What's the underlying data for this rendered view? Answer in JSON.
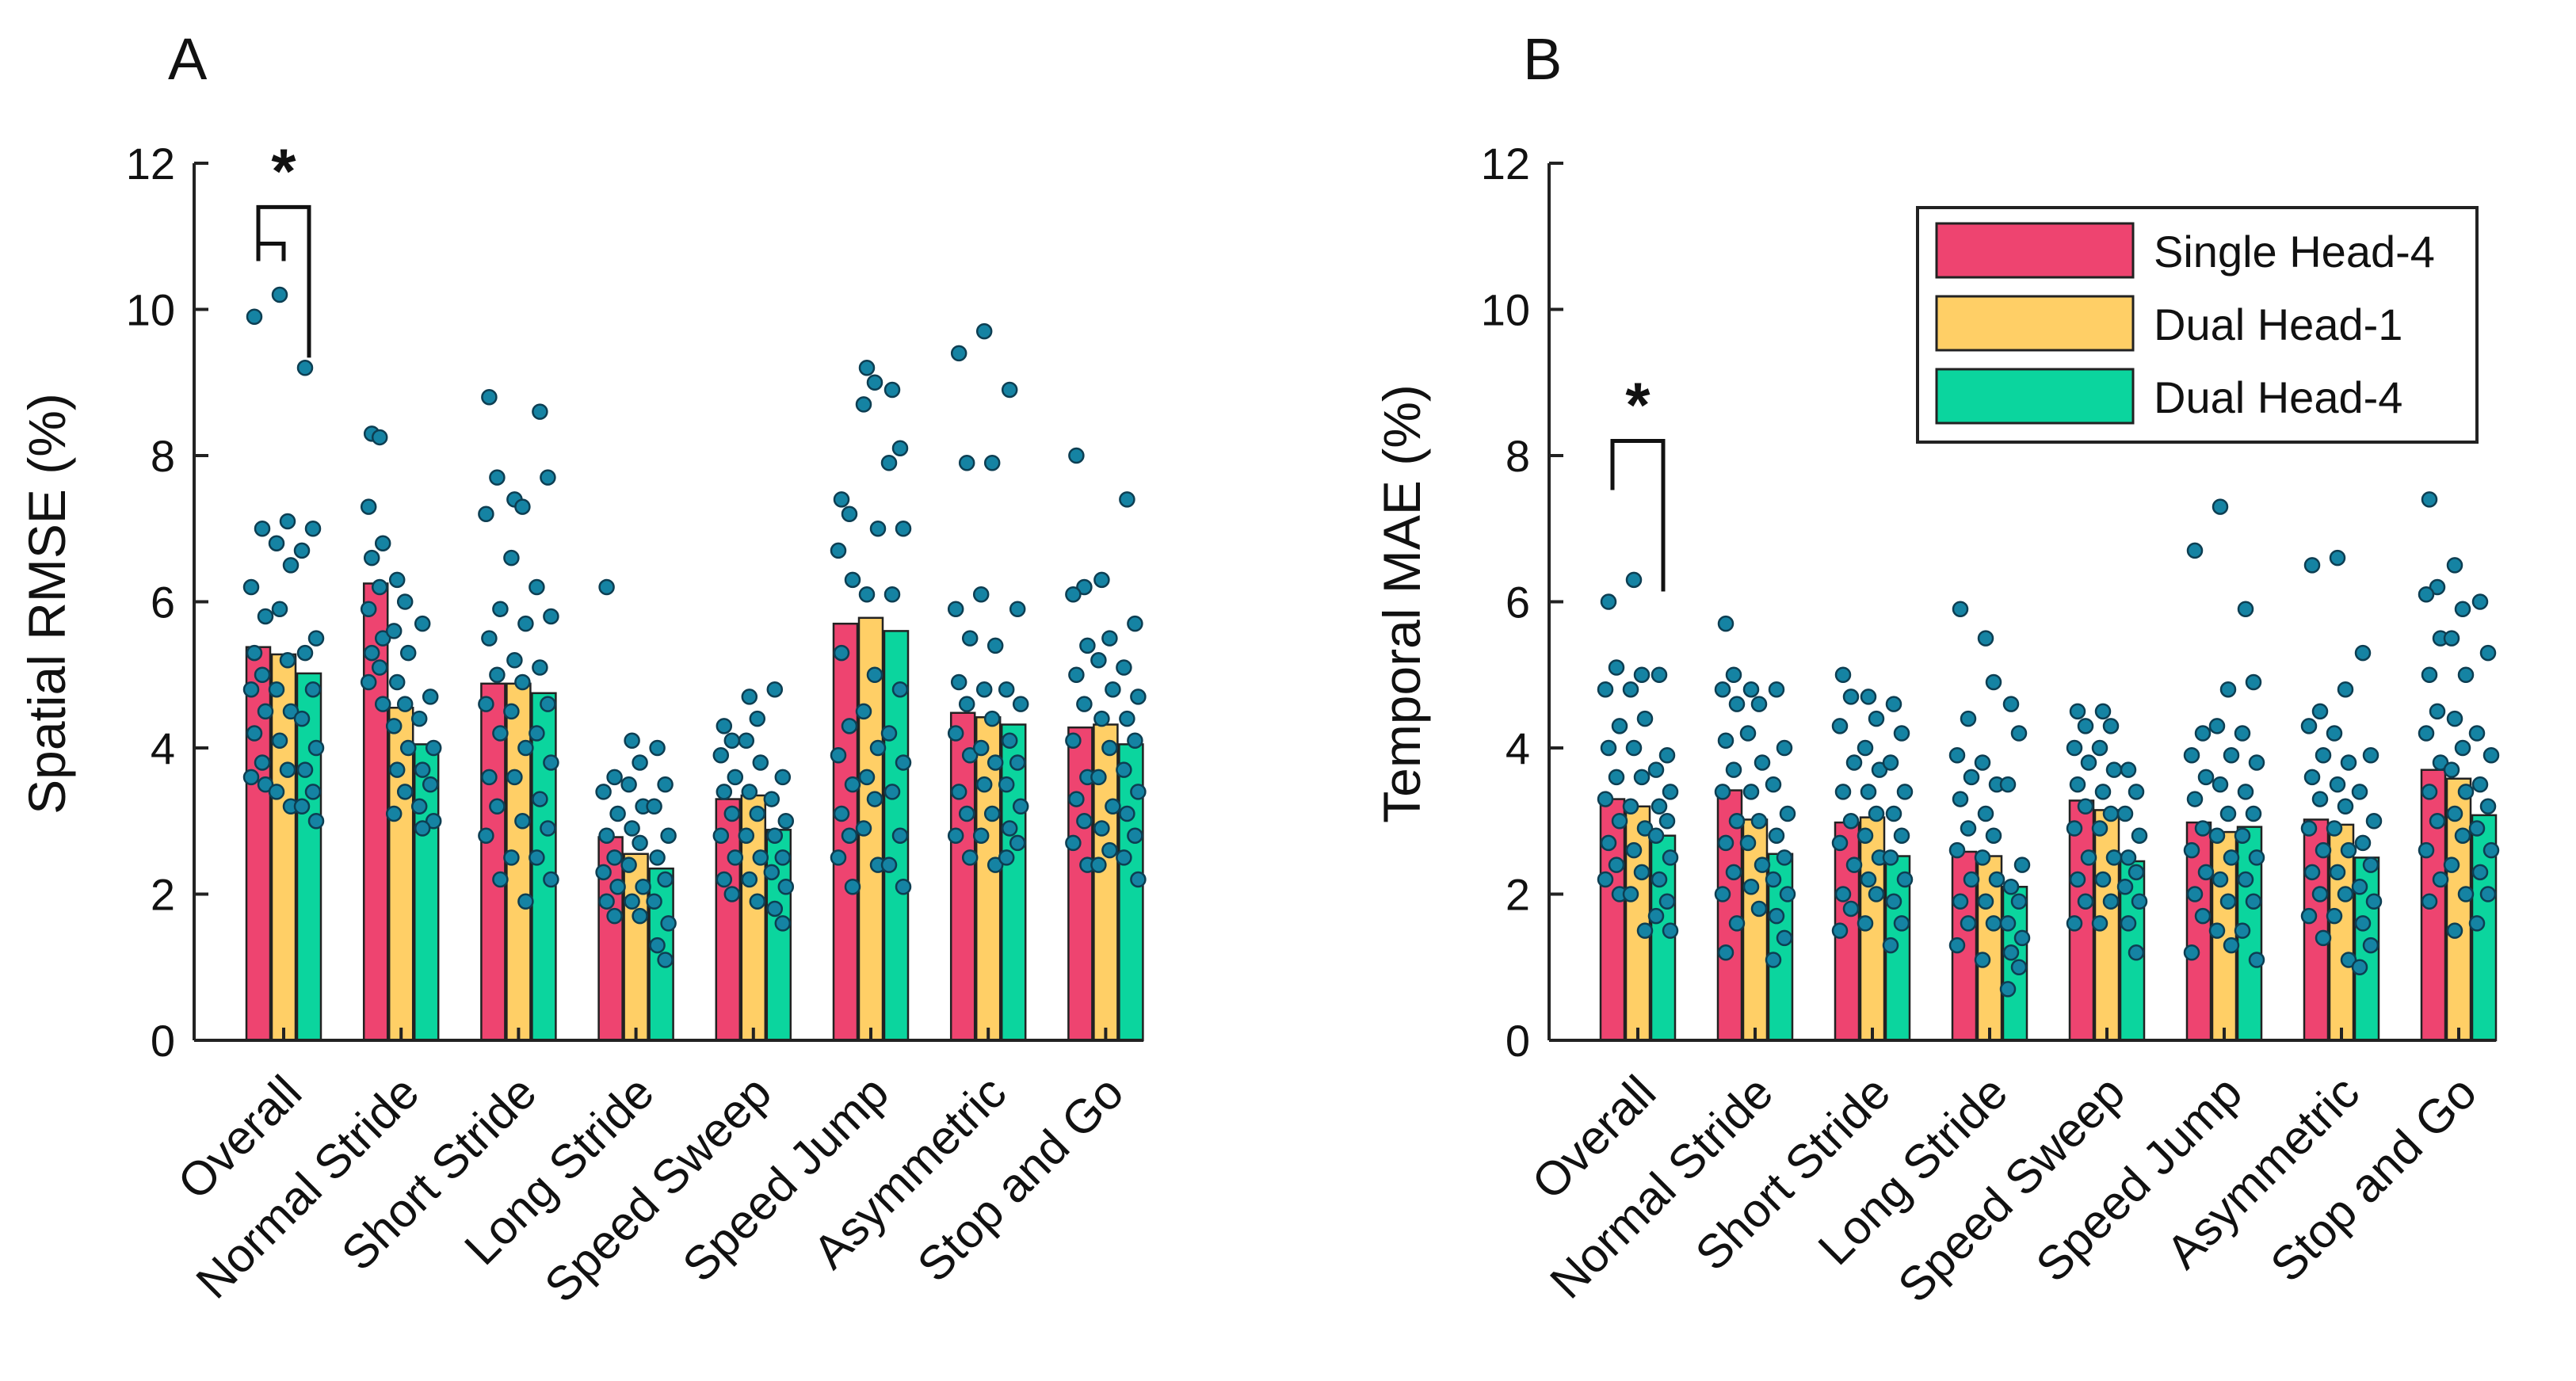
{
  "colors": {
    "single_head_4": "#EE4470",
    "dual_head_1": "#FFCF66",
    "dual_head_4": "#0BD59E",
    "dot": "#1583A3",
    "dot_edge": "#0D3E52"
  },
  "legend": [
    {
      "label": "Single Head-4",
      "color": "#EE4470"
    },
    {
      "label": "Dual Head-1",
      "color": "#FFCF66"
    },
    {
      "label": "Dual Head-4",
      "color": "#0BD59E"
    }
  ],
  "chart_data": [
    {
      "type": "bar",
      "panel": "A",
      "ylabel": "Spatial RMSE (%)",
      "xlabel": "",
      "ylim": [
        0,
        12
      ],
      "yticks": [
        0,
        2,
        4,
        6,
        8,
        10,
        12
      ],
      "categories": [
        "Overall",
        "Normal Stride",
        "Short Stride",
        "Long Stride",
        "Speed Sweep",
        "Speed Jump",
        "Asymmetric",
        "Stop and Go"
      ],
      "series": [
        {
          "name": "Single Head-4",
          "values": [
            5.38,
            6.25,
            4.88,
            2.78,
            3.3,
            5.7,
            4.48,
            4.28
          ],
          "points": [
            [
              9.9,
              7.0,
              6.2,
              5.8,
              5.3,
              5.0,
              4.8,
              4.5,
              4.2,
              3.8,
              3.6,
              3.5
            ],
            [
              8.3,
              8.25,
              7.3,
              6.8,
              6.6,
              6.2,
              5.9,
              5.5,
              5.3,
              5.1,
              4.9,
              4.6
            ],
            [
              8.8,
              7.7,
              7.2,
              5.9,
              5.5,
              5.0,
              4.6,
              4.2,
              3.6,
              3.2,
              2.8,
              2.2
            ],
            [
              6.2,
              3.6,
              3.4,
              3.1,
              2.8,
              2.5,
              2.3,
              2.1,
              1.9,
              1.7
            ],
            [
              4.3,
              4.1,
              3.9,
              3.6,
              3.4,
              3.1,
              2.8,
              2.5,
              2.2,
              2.0
            ],
            [
              7.4,
              7.2,
              6.7,
              6.3,
              5.3,
              4.3,
              3.9,
              3.5,
              3.1,
              2.8,
              2.5,
              2.1
            ],
            [
              9.4,
              7.9,
              5.9,
              5.5,
              4.9,
              4.6,
              4.2,
              3.9,
              3.4,
              3.1,
              2.8,
              2.5
            ],
            [
              8.0,
              6.2,
              6.1,
              5.4,
              5.0,
              4.6,
              4.1,
              3.6,
              3.3,
              3.0,
              2.7,
              2.4
            ]
          ]
        },
        {
          "name": "Dual Head-1",
          "values": [
            5.28,
            4.55,
            4.88,
            2.55,
            3.35,
            5.78,
            4.42,
            4.32
          ],
          "points": [
            [
              10.2,
              7.1,
              6.8,
              6.5,
              5.9,
              5.2,
              4.8,
              4.5,
              4.1,
              3.7,
              3.4,
              3.2
            ],
            [
              6.3,
              6.0,
              5.6,
              5.3,
              4.9,
              4.6,
              4.3,
              4.0,
              3.7,
              3.4,
              3.1
            ],
            [
              7.4,
              7.3,
              6.6,
              5.7,
              5.2,
              4.9,
              4.5,
              4.0,
              3.6,
              3.0,
              2.5,
              1.9
            ],
            [
              4.1,
              3.8,
              3.5,
              3.2,
              2.9,
              2.7,
              2.4,
              2.1,
              1.9,
              1.7
            ],
            [
              4.7,
              4.4,
              4.1,
              3.8,
              3.4,
              3.1,
              2.8,
              2.5,
              2.2,
              1.9
            ],
            [
              9.2,
              9.0,
              8.7,
              7.0,
              6.1,
              5.0,
              4.5,
              4.0,
              3.6,
              3.3,
              2.9,
              2.4
            ],
            [
              9.7,
              7.9,
              6.1,
              5.4,
              4.8,
              4.4,
              4.0,
              3.8,
              3.5,
              3.1,
              2.8,
              2.4
            ],
            [
              6.3,
              5.5,
              5.2,
              4.8,
              4.4,
              4.0,
              3.6,
              3.2,
              2.9,
              2.6,
              2.4
            ]
          ]
        },
        {
          "name": "Dual Head-4",
          "values": [
            5.02,
            4.05,
            4.75,
            2.35,
            2.88,
            5.6,
            4.32,
            4.05
          ],
          "points": [
            [
              9.2,
              7.0,
              6.7,
              5.5,
              5.3,
              4.8,
              4.4,
              4.0,
              3.7,
              3.4,
              3.2,
              3.0
            ],
            [
              5.7,
              4.7,
              4.4,
              4.0,
              3.7,
              3.5,
              3.2,
              3.0,
              2.9
            ],
            [
              8.6,
              7.7,
              6.2,
              5.8,
              5.1,
              4.6,
              4.2,
              3.8,
              3.3,
              2.9,
              2.5,
              2.2
            ],
            [
              4.0,
              3.5,
              3.2,
              2.8,
              2.5,
              2.2,
              1.9,
              1.6,
              1.3,
              1.1
            ],
            [
              4.8,
              3.6,
              3.3,
              3.0,
              2.8,
              2.5,
              2.3,
              2.1,
              1.8,
              1.6
            ],
            [
              8.9,
              8.1,
              7.9,
              7.0,
              6.1,
              4.8,
              4.2,
              3.8,
              3.4,
              2.8,
              2.4,
              2.1
            ],
            [
              8.9,
              5.9,
              4.8,
              4.6,
              4.1,
              3.8,
              3.5,
              3.2,
              2.9,
              2.7,
              2.5
            ],
            [
              7.4,
              5.7,
              5.1,
              4.7,
              4.4,
              4.1,
              3.7,
              3.4,
              3.1,
              2.8,
              2.5,
              2.2
            ]
          ]
        }
      ],
      "significance": [
        {
          "from_series": 0,
          "to_series": 1,
          "y": 10.9
        },
        {
          "from_series": 0,
          "to_series": 2,
          "y": 11.4,
          "label": "*"
        }
      ]
    },
    {
      "type": "bar",
      "panel": "B",
      "ylabel": "Temporal MAE (%)",
      "xlabel": "",
      "ylim": [
        0,
        12
      ],
      "yticks": [
        0,
        2,
        4,
        6,
        8,
        10,
        12
      ],
      "categories": [
        "Overall",
        "Normal Stride",
        "Short Stride",
        "Long Stride",
        "Speed Sweep",
        "Speed Jump",
        "Asymmetric",
        "Stop and Go"
      ],
      "legend_position": "top-right",
      "series": [
        {
          "name": "Single Head-4",
          "values": [
            3.3,
            3.42,
            2.98,
            2.58,
            3.28,
            2.98,
            3.02,
            3.7
          ],
          "points": [
            [
              6.0,
              5.1,
              4.8,
              4.3,
              4.0,
              3.6,
              3.3,
              3.0,
              2.7,
              2.4,
              2.2,
              2.0
            ],
            [
              5.7,
              5.0,
              4.8,
              4.6,
              4.1,
              3.7,
              3.4,
              3.0,
              2.7,
              2.3,
              2.0,
              1.6,
              1.2
            ],
            [
              5.0,
              4.7,
              4.3,
              3.8,
              3.4,
              3.0,
              2.7,
              2.4,
              2.0,
              1.8,
              1.5
            ],
            [
              5.9,
              4.4,
              3.9,
              3.6,
              3.3,
              2.9,
              2.6,
              2.2,
              1.9,
              1.6,
              1.3
            ],
            [
              4.5,
              4.3,
              4.0,
              3.8,
              3.5,
              3.2,
              2.9,
              2.5,
              2.2,
              1.9,
              1.6
            ],
            [
              6.7,
              4.2,
              3.9,
              3.6,
              3.3,
              2.9,
              2.6,
              2.3,
              2.0,
              1.7,
              1.2
            ],
            [
              6.5,
              4.5,
              4.3,
              3.9,
              3.6,
              3.3,
              2.9,
              2.6,
              2.3,
              2.0,
              1.7,
              1.4
            ],
            [
              7.4,
              6.2,
              6.1,
              5.5,
              5.0,
              4.5,
              4.2,
              3.8,
              3.4,
              3.0,
              2.6,
              2.2,
              1.9
            ]
          ]
        },
        {
          "name": "Dual Head-1",
          "values": [
            3.2,
            3.02,
            3.05,
            2.52,
            3.15,
            2.85,
            2.95,
            3.58
          ],
          "points": [
            [
              6.3,
              5.0,
              4.8,
              4.4,
              4.0,
              3.6,
              3.2,
              2.9,
              2.6,
              2.3,
              2.0,
              1.5
            ],
            [
              4.8,
              4.6,
              4.2,
              3.8,
              3.4,
              3.0,
              2.7,
              2.4,
              2.1,
              1.8
            ],
            [
              4.7,
              4.4,
              4.0,
              3.7,
              3.4,
              3.1,
              2.8,
              2.5,
              2.2,
              2.0,
              1.6
            ],
            [
              5.5,
              4.9,
              3.8,
              3.5,
              3.1,
              2.8,
              2.5,
              2.2,
              1.9,
              1.6,
              1.1
            ],
            [
              4.5,
              4.3,
              4.0,
              3.7,
              3.4,
              3.1,
              2.9,
              2.5,
              2.2,
              1.9,
              1.6
            ],
            [
              7.3,
              4.8,
              4.3,
              3.9,
              3.5,
              3.1,
              2.8,
              2.5,
              2.2,
              1.9,
              1.5,
              1.3
            ],
            [
              6.6,
              4.8,
              4.2,
              3.8,
              3.5,
              3.2,
              2.9,
              2.6,
              2.3,
              2.0,
              1.7,
              1.1
            ],
            [
              6.5,
              5.9,
              5.5,
              5.0,
              4.4,
              4.0,
              3.7,
              3.4,
              3.1,
              2.8,
              2.4,
              2.0,
              1.5
            ]
          ]
        },
        {
          "name": "Dual Head-4",
          "values": [
            2.8,
            2.55,
            2.52,
            2.1,
            2.45,
            2.92,
            2.5,
            3.08
          ],
          "points": [
            [
              5.0,
              3.9,
              3.7,
              3.4,
              3.2,
              3.0,
              2.8,
              2.5,
              2.2,
              1.9,
              1.7,
              1.5
            ],
            [
              4.8,
              4.0,
              3.5,
              3.1,
              2.8,
              2.5,
              2.2,
              2.0,
              1.7,
              1.4,
              1.1
            ],
            [
              4.6,
              4.2,
              3.8,
              3.4,
              3.1,
              2.8,
              2.5,
              2.2,
              1.9,
              1.6,
              1.3
            ],
            [
              4.6,
              4.2,
              3.5,
              2.4,
              2.1,
              1.9,
              1.6,
              1.4,
              1.2,
              1.0,
              0.7
            ],
            [
              3.7,
              3.4,
              3.1,
              2.8,
              2.5,
              2.3,
              2.1,
              1.9,
              1.6,
              1.2
            ],
            [
              5.9,
              4.9,
              4.2,
              3.8,
              3.4,
              3.1,
              2.8,
              2.5,
              2.2,
              1.9,
              1.5,
              1.1
            ],
            [
              5.3,
              3.9,
              3.4,
              3.0,
              2.7,
              2.4,
              2.1,
              1.9,
              1.6,
              1.3,
              1.0
            ],
            [
              6.0,
              5.3,
              4.2,
              3.9,
              3.5,
              3.2,
              2.9,
              2.6,
              2.3,
              2.0,
              1.6
            ]
          ]
        }
      ],
      "significance": [
        {
          "from_series": 0,
          "to_series": 2,
          "y": 8.2,
          "label": "*"
        }
      ]
    }
  ]
}
